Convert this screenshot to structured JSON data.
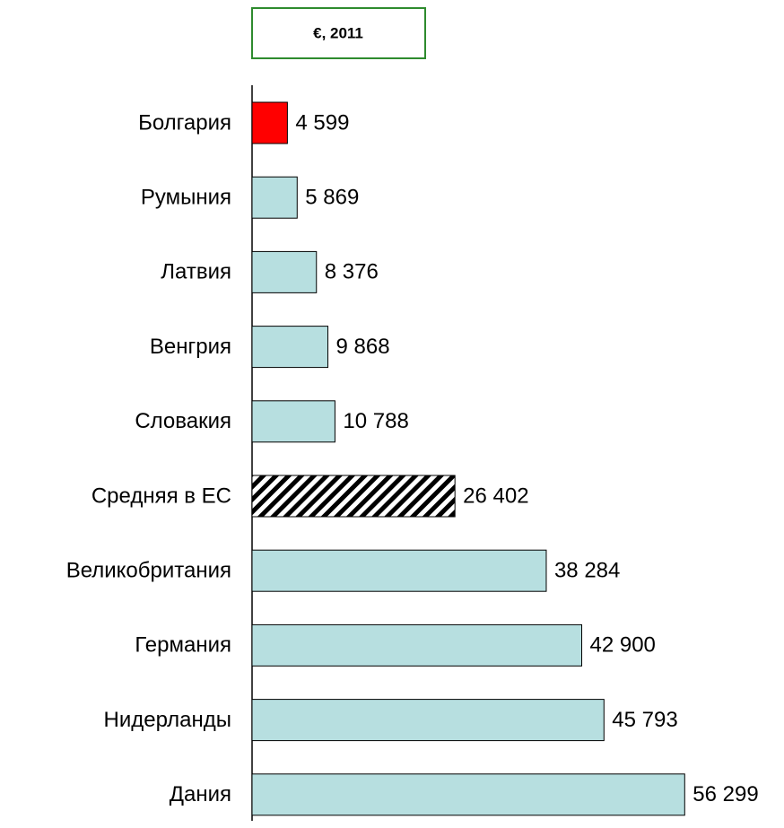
{
  "chart_data": {
    "type": "barh",
    "title": "€, 2011",
    "categories": [
      "Болгария",
      "Румыния",
      "Латвия",
      "Венгрия",
      "Словакия",
      "Средняя в ЕС",
      "Великобритания",
      "Германия",
      "Нидерланды",
      "Дания"
    ],
    "values": [
      4599,
      5869,
      8376,
      9868,
      10788,
      26402,
      38284,
      42900,
      45793,
      56299
    ],
    "value_labels": [
      "4 599",
      "5 869",
      "8 376",
      "9 868",
      "10 788",
      "26 402",
      "38 284",
      "42 900",
      "45 793",
      "56 299"
    ],
    "colors": [
      "#ff0000",
      "#b7dfe0",
      "#b7dfe0",
      "#b7dfe0",
      "#b7dfe0",
      "#ffffff",
      "#b7dfe0",
      "#b7dfe0",
      "#b7dfe0",
      "#b7dfe0"
    ],
    "hatched": [
      false,
      false,
      false,
      false,
      false,
      true,
      false,
      false,
      false,
      false
    ],
    "xlim": [
      0,
      60000
    ]
  }
}
